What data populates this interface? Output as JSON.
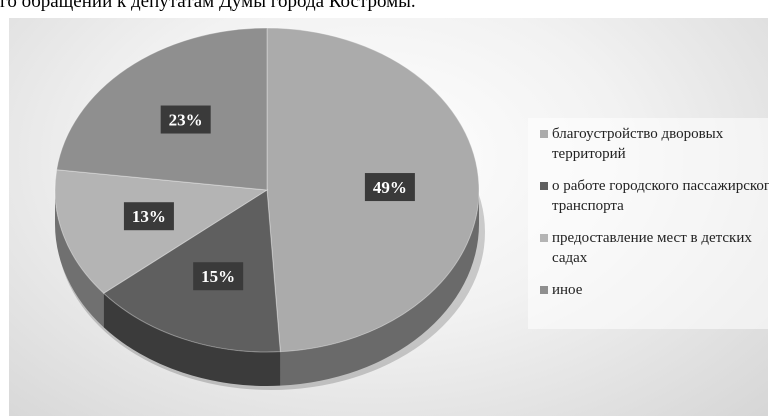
{
  "caption": "го обращений к депутатам Думы города Костромы.",
  "chart_data": {
    "type": "pie",
    "title": "",
    "slices": [
      {
        "label": "благоустройство дворовых территорий",
        "value": 49,
        "display": "49%",
        "color": "#ababab"
      },
      {
        "label": "о работе городского пассажирского транспорта",
        "value": 15,
        "display": "15%",
        "color": "#5f5f5f"
      },
      {
        "label": "предоставление мест в детских садах",
        "value": 13,
        "display": "13%",
        "color": "#b4b4b4"
      },
      {
        "label": "иное",
        "value": 23,
        "display": "23%",
        "color": "#8f8f8f"
      }
    ],
    "legend": {
      "position": "right"
    },
    "style": "3d"
  }
}
